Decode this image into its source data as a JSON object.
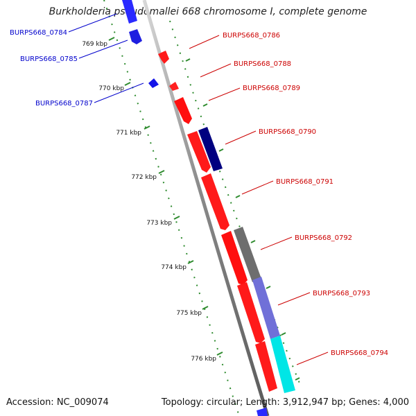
{
  "title": "Burkholderia pseudomallei 668 chromosome I, complete genome",
  "accession_label": "Accession: NC_009074",
  "topology_label": "Topology: circular; Length: 3,912,947 bp; Genes: 4,000",
  "colors": {
    "backbone": "#8a8a8a",
    "tick": "#2e8b2e",
    "label_blue": "#0000cc",
    "label_red": "#cc0000"
  },
  "kbp_ticks": [
    {
      "label": "769 kbp"
    },
    {
      "label": "770 kbp"
    },
    {
      "label": "771 kbp"
    },
    {
      "label": "772 kbp"
    },
    {
      "label": "773 kbp"
    },
    {
      "label": "774 kbp"
    },
    {
      "label": "775 kbp"
    },
    {
      "label": "776 kbp"
    }
  ],
  "gene_labels": [
    {
      "name": "BURPS668_0784",
      "side": "left",
      "color": "blue"
    },
    {
      "name": "BURPS668_0785",
      "side": "left",
      "color": "blue"
    },
    {
      "name": "BURPS668_0787",
      "side": "left",
      "color": "blue"
    },
    {
      "name": "BURPS668_0786",
      "side": "right",
      "color": "red"
    },
    {
      "name": "BURPS668_0788",
      "side": "right",
      "color": "red"
    },
    {
      "name": "BURPS668_0789",
      "side": "right",
      "color": "red"
    },
    {
      "name": "BURPS668_0790",
      "side": "right",
      "color": "red"
    },
    {
      "name": "BURPS668_0791",
      "side": "right",
      "color": "red"
    },
    {
      "name": "BURPS668_0792",
      "side": "right",
      "color": "red"
    },
    {
      "name": "BURPS668_0793",
      "side": "right",
      "color": "red"
    },
    {
      "name": "BURPS668_0794",
      "side": "right",
      "color": "red"
    }
  ]
}
